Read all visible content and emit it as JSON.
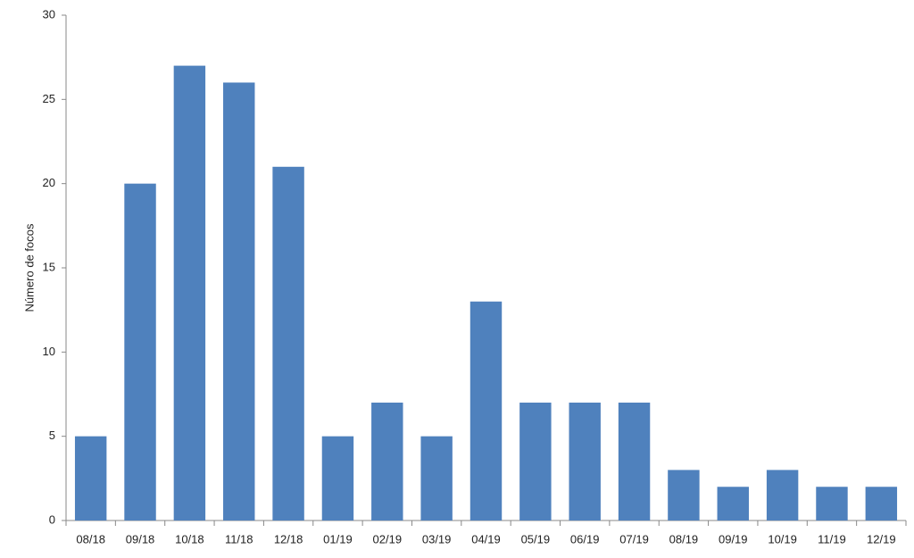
{
  "chart_data": {
    "type": "bar",
    "y_label": "Número de focos",
    "categories": [
      "08/18",
      "09/18",
      "10/18",
      "11/18",
      "12/18",
      "01/19",
      "02/19",
      "03/19",
      "04/19",
      "05/19",
      "06/19",
      "07/19",
      "08/19",
      "09/19",
      "10/19",
      "11/19",
      "12/19"
    ],
    "values": [
      5,
      20,
      27,
      26,
      21,
      5,
      7,
      5,
      13,
      7,
      7,
      7,
      3,
      2,
      3,
      2,
      2
    ],
    "color": "#4f81bd",
    "ylim": [
      0,
      30
    ],
    "yticks": [
      0,
      5,
      10,
      15,
      20,
      25,
      30
    ],
    "grid": false
  }
}
